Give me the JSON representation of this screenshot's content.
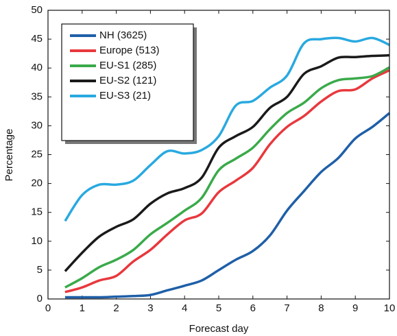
{
  "chart_data": {
    "type": "line",
    "x_label": "Forecast day",
    "y_label": "Percentage",
    "x": [
      0.5,
      1,
      1.5,
      2,
      2.5,
      3,
      3.5,
      4,
      4.5,
      5,
      5.5,
      6,
      6.5,
      7,
      7.5,
      8,
      8.5,
      9,
      9.5,
      10
    ],
    "series": [
      {
        "name": "NH (3625)",
        "color": "#1f5fa8",
        "values": [
          0.3,
          0.3,
          0.3,
          0.4,
          0.5,
          0.7,
          1.5,
          2.3,
          3.2,
          5,
          6.8,
          8.3,
          11,
          15.3,
          18.7,
          22,
          24.4,
          27.8,
          29.8,
          32.2
        ]
      },
      {
        "name": "Europe (513)",
        "color": "#e8383d",
        "values": [
          1.2,
          2,
          3.2,
          4,
          6.5,
          8.5,
          11.2,
          13.6,
          14.8,
          18.5,
          20.5,
          22.7,
          26.8,
          29.8,
          31.7,
          34.2,
          36,
          36.3,
          38.2,
          39.6
        ]
      },
      {
        "name": "EU-S1 (285)",
        "color": "#3aaa4a",
        "values": [
          2,
          3.6,
          5.5,
          6.8,
          8.5,
          11.2,
          13.2,
          15.3,
          17.5,
          22.3,
          24.3,
          26.2,
          29.4,
          32.2,
          34,
          36.5,
          37.9,
          38.2,
          38.6,
          40.1
        ]
      },
      {
        "name": "EU-S2 (121)",
        "color": "#1a1a1a",
        "values": [
          4.8,
          8,
          10.8,
          12.5,
          13.8,
          16.5,
          18.3,
          19.2,
          21,
          26.2,
          28.2,
          29.8,
          33.1,
          35,
          39,
          40.3,
          41.8,
          41.9,
          42.1,
          42.2
        ]
      },
      {
        "name": "EU-S3 (21)",
        "color": "#29a9e0",
        "values": [
          13.5,
          18,
          19.8,
          19.8,
          20.5,
          23.2,
          25.6,
          25.2,
          25.8,
          28.2,
          33.5,
          34.3,
          36.6,
          38.7,
          44.3,
          45,
          45.2,
          44.6,
          45.2,
          44
        ]
      }
    ],
    "xlim": [
      0,
      10
    ],
    "xticks": [
      0,
      1,
      2,
      3,
      4,
      5,
      6,
      7,
      8,
      9,
      10
    ],
    "ylim": [
      0,
      50
    ],
    "yticks": [
      0,
      5,
      10,
      15,
      20,
      25,
      30,
      35,
      40,
      45,
      50
    ],
    "legend": "top-left"
  }
}
